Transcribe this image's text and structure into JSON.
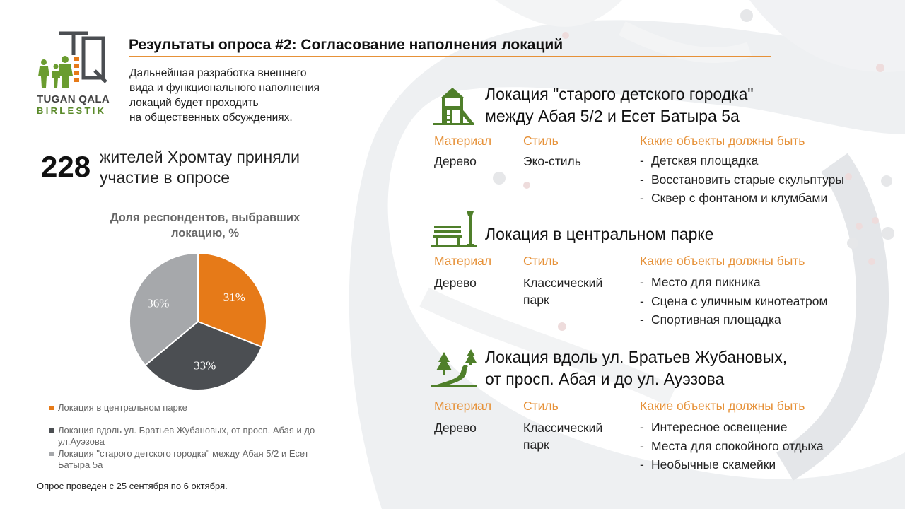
{
  "header": {
    "title": "Результаты опроса #2: Согласование наполнения локаций",
    "intro_lines": [
      "Дальнейшая разработка внешнего",
      "вида и функционального  наполнения",
      "локаций будет проходить",
      "на общественных обсуждениях."
    ]
  },
  "logo": {
    "line1": "TUGAN QALA",
    "line2": "BIRLESTIK"
  },
  "respondents": {
    "count": "228",
    "text_lines": [
      "жителей Хромтау приняли",
      "участие в опросе"
    ]
  },
  "chart_data": {
    "type": "pie",
    "title_lines": [
      "Доля респондентов, выбравших",
      "локацию, %"
    ],
    "slices": [
      {
        "label": "Локация в центральном парке",
        "value": 31,
        "display": "31%",
        "color": "#e67a18"
      },
      {
        "label": "Локация вдоль ул. Братьев Жубановых, от просп. Абая и до ул.Ауэзова",
        "value": 33,
        "display": "33%",
        "color": "#4b4e52"
      },
      {
        "label": "Локация \"старого детского городка\" между Абая 5/2 и Есет Батыра 5а",
        "value": 36,
        "display": "36%",
        "color": "#a6a8ab"
      }
    ],
    "legend": [
      {
        "lines": [
          "Локация в центральном парке"
        ],
        "color": "#e67a18"
      },
      {
        "lines": [
          "Локация вдоль ул. Братьев Жубановых, от просп. Абая и до",
          "ул.Ауэзова"
        ],
        "color": "#4b4e52"
      },
      {
        "lines": [
          "Локация \"старого детского городка\" между Абая 5/2 и Есет",
          "Батыра 5а"
        ],
        "color": "#a6a8ab"
      }
    ]
  },
  "footnote": "Опрос проведен с 25 сентября по 6 октября.",
  "column_headers": {
    "material": "Материал",
    "style": "Стиль",
    "objects": "Какие объекты должны быть"
  },
  "locations": [
    {
      "title_lines": [
        "Локация \"старого детского городка\"",
        "между Абая 5/2 и Есет Батыра 5а"
      ],
      "icon": "playground-icon",
      "material": "Дерево",
      "style_lines": [
        "Эко-стиль"
      ],
      "objects": [
        "Детская площадка",
        "Восстановить старые скульптуры",
        "Сквер с фонтаном и клумбами"
      ]
    },
    {
      "title_lines": [
        "Локация в центральном парке"
      ],
      "icon": "park-bench-icon",
      "material": "Дерево",
      "style_lines": [
        "Классический",
        "парк"
      ],
      "objects": [
        "Место для пикника",
        "Сцена с уличным кинотеатром",
        "Спортивная площадка"
      ]
    },
    {
      "title_lines": [
        "Локация вдоль ул. Братьев Жубановых,",
        "от просп. Абая и до ул. Ауэзова"
      ],
      "icon": "forest-road-icon",
      "material": "Дерево",
      "style_lines": [
        "Классический",
        "парк"
      ],
      "objects": [
        "Интересное освещение",
        "Места для спокойного отдыха",
        "Необычные скамейки"
      ]
    }
  ],
  "colors": {
    "accent": "#e69138",
    "icon_green": "#4f7f2a",
    "dark_grey": "#4b4e52",
    "light_grey": "#a6a8ab"
  }
}
